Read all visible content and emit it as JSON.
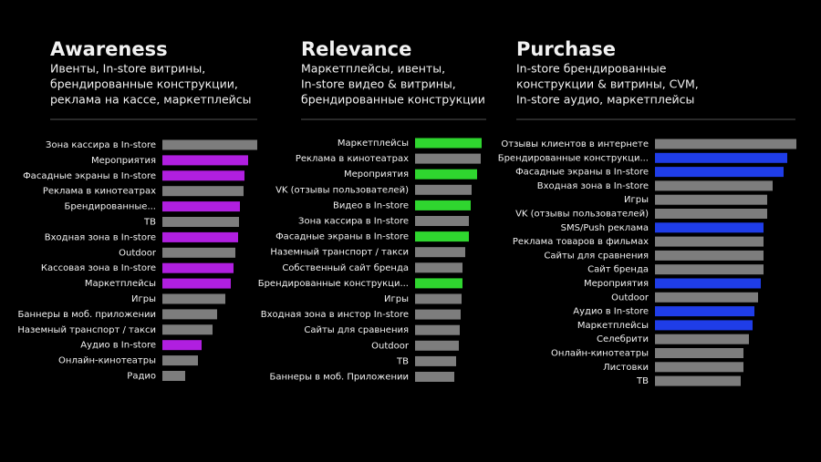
{
  "chart_data": [
    {
      "type": "hbar",
      "title": "Awareness",
      "subtitle": [
        "Ивенты, In-store витрины,",
        "брендированные конструкции,",
        "реклама на кассе, маркетплейсы"
      ],
      "categories": [
        "Зона кассира в In-store",
        "Мероприятия",
        "Фасадные экраны в In-store",
        "Реклама в кинотеатрах",
        "Брендированные...",
        "ТВ",
        "Входная зона в In-store",
        "Outdoor",
        "Кассовая зона в In-store",
        "Маркетплейсы",
        "Игры",
        "Баннеры в моб. приложении",
        "Наземный транспорт / такси",
        "Аудио в In-store",
        "Онлайн-кинотеатры",
        "Радио"
      ],
      "values": [
        104,
        94,
        90,
        89,
        85,
        84,
        83,
        80,
        78,
        75,
        69,
        60,
        55,
        43,
        39,
        25
      ],
      "colors": [
        "#7d7d7d",
        "#b01fe0",
        "#b01fe0",
        "#7d7d7d",
        "#b01fe0",
        "#7d7d7d",
        "#b01fe0",
        "#7d7d7d",
        "#b01fe0",
        "#b01fe0",
        "#7d7d7d",
        "#7d7d7d",
        "#7d7d7d",
        "#b01fe0",
        "#7d7d7d",
        "#7d7d7d"
      ]
    },
    {
      "type": "hbar",
      "title": "Relevance",
      "subtitle": [
        "Маркетплейсы, ивенты,",
        "In-store видео & витрины,",
        "брендированные конструкции"
      ],
      "categories": [
        "Маркетплейсы",
        "Реклама в кинотеатрах",
        "Мероприятия",
        "VK (отзывы пользователей)",
        "Видео в In-store",
        "Зона кассира в In-store",
        "Фасадные экраны в In-store",
        "Наземный транспорт / такси",
        "Собственный сайт бренда",
        "Брендированные конструкци...",
        "Игры",
        "Входная зона в инстор In-store",
        "Сайты для сравнения",
        "Outdoor",
        "ТВ",
        "Баннеры в моб. Приложении"
      ],
      "values": [
        73,
        72,
        68,
        62,
        61,
        59,
        59,
        55,
        52,
        52,
        51,
        50,
        49,
        48,
        45,
        43
      ],
      "colors": [
        "#2fd62f",
        "#7d7d7d",
        "#2fd62f",
        "#7d7d7d",
        "#2fd62f",
        "#7d7d7d",
        "#2fd62f",
        "#7d7d7d",
        "#7d7d7d",
        "#2fd62f",
        "#7d7d7d",
        "#7d7d7d",
        "#7d7d7d",
        "#7d7d7d",
        "#7d7d7d",
        "#7d7d7d"
      ]
    },
    {
      "type": "hbar",
      "title": "Purchase",
      "subtitle": [
        "In-store брендированные",
        "конструкции & витрины, CVM,",
        "In-store аудио, маркетплейсы"
      ],
      "categories": [
        "Отзывы клиентов в интернете",
        "Брендированные конструкци...",
        "Фасадные экраны в In-store",
        "Входная зона в In-store",
        "Игры",
        "VK (отзывы пользователей)",
        "SMS/Push реклама",
        "Реклама товаров в фильмах",
        "Сайты для сравнения",
        "Сайт бренда",
        "Мероприятия",
        "Outdoor",
        "Аудио в In-store",
        "Маркетплейсы",
        "Селебрити",
        "Онлайн-кинотеатры",
        "Листовки",
        "ТВ"
      ],
      "values": [
        155,
        145,
        141,
        129,
        123,
        123,
        119,
        119,
        119,
        119,
        116,
        113,
        109,
        107,
        103,
        97,
        97,
        94
      ],
      "colors": [
        "#7d7d7d",
        "#1f3de8",
        "#1f3de8",
        "#7d7d7d",
        "#7d7d7d",
        "#7d7d7d",
        "#1f3de8",
        "#7d7d7d",
        "#7d7d7d",
        "#7d7d7d",
        "#1f3de8",
        "#7d7d7d",
        "#1f3de8",
        "#1f3de8",
        "#7d7d7d",
        "#7d7d7d",
        "#7d7d7d",
        "#7d7d7d"
      ]
    }
  ]
}
